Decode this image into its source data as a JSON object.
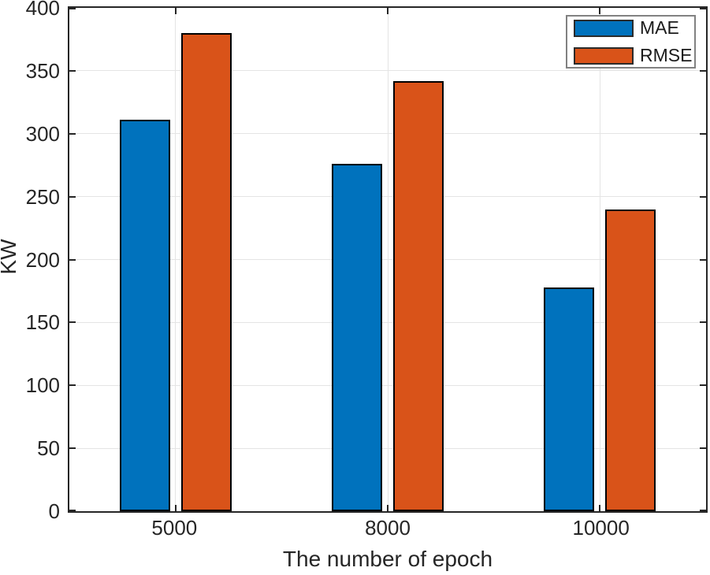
{
  "chart_data": {
    "type": "bar",
    "title": "",
    "xlabel": "The number of epoch",
    "ylabel": "KW",
    "categories": [
      "5000",
      "8000",
      "10000"
    ],
    "series": [
      {
        "name": "MAE",
        "color": "#0072BD",
        "values": [
          311,
          276,
          178
        ]
      },
      {
        "name": "RMSE",
        "color": "#D95319",
        "values": [
          380,
          342,
          240
        ]
      }
    ],
    "ylim": [
      0,
      400
    ],
    "yticks": [
      0,
      50,
      100,
      150,
      200,
      250,
      300,
      350,
      400
    ],
    "grid": "both",
    "bar_edge_color": "#000000",
    "legend_position": "top-right"
  },
  "colors": {
    "background": "#FFFFFF",
    "axis": "#262626",
    "grid": "#E4E4E4",
    "text": "#262626",
    "legend_border": "#818181",
    "swatch_border": "#2B2B2B"
  }
}
